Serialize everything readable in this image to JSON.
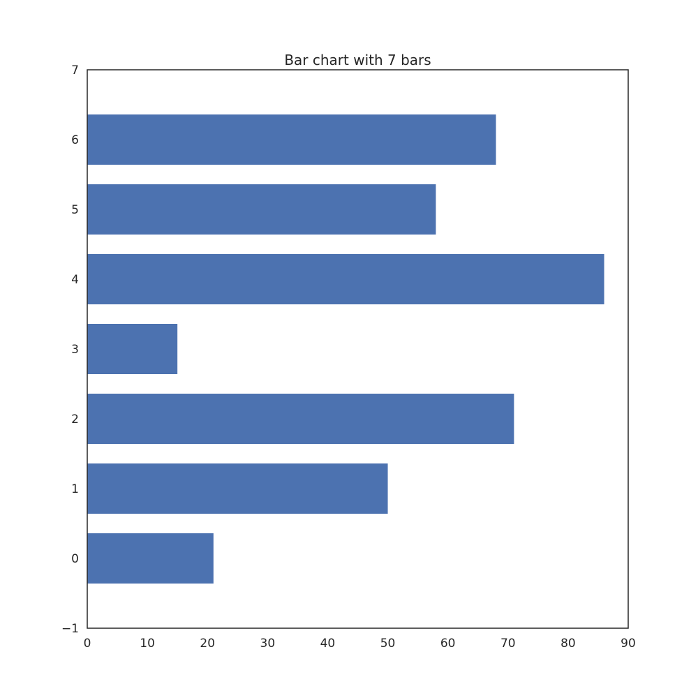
{
  "chart_data": {
    "type": "bar",
    "orientation": "horizontal",
    "title": "Bar chart with 7 bars",
    "xlabel": "",
    "ylabel": "",
    "categories": [
      0,
      1,
      2,
      3,
      4,
      5,
      6
    ],
    "values": [
      21,
      50,
      71,
      15,
      86,
      58,
      68
    ],
    "xlim": [
      0,
      90
    ],
    "ylim": [
      -1,
      7
    ],
    "x_ticks": [
      0,
      10,
      20,
      30,
      40,
      50,
      60,
      70,
      80,
      90
    ],
    "y_ticks": [
      -1,
      0,
      1,
      2,
      3,
      4,
      5,
      6,
      7
    ],
    "y_tick_labels": [
      "−1",
      "0",
      "1",
      "2",
      "3",
      "4",
      "5",
      "6",
      "7"
    ],
    "bar_color": "#4c72b0",
    "grid": false,
    "legend": "none"
  }
}
